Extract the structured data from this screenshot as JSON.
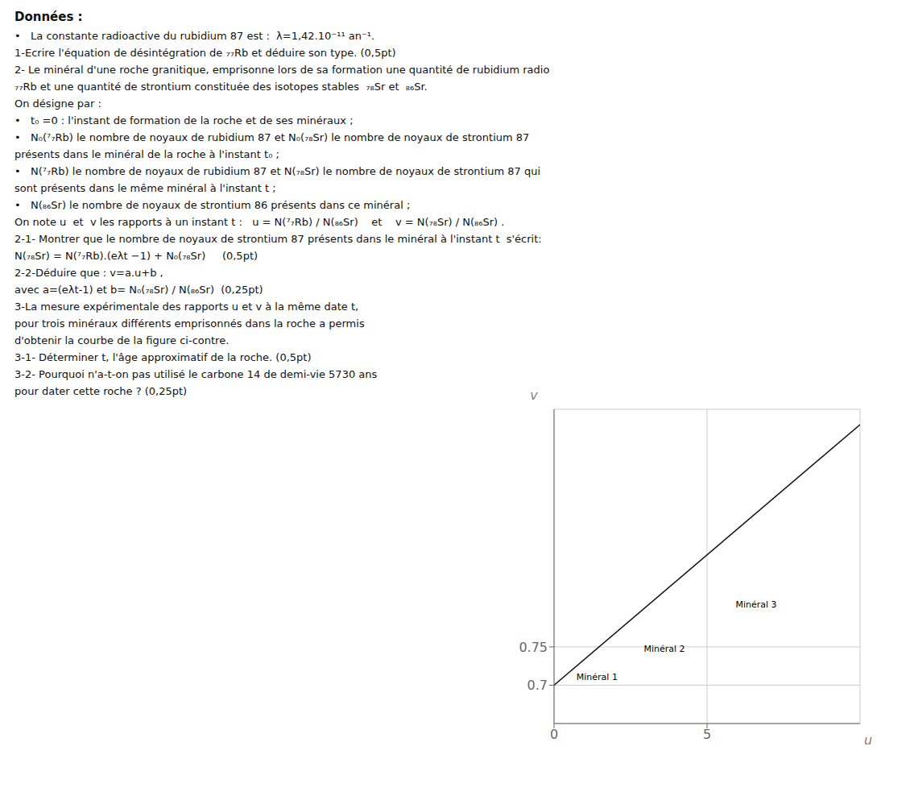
{
  "chart_data": {
    "type": "line",
    "title": "Données :",
    "subtitle": [
      "•   La constante radioactive du rubidium 87 est :  λ=1,42.10⁻¹¹ an⁻¹.",
      "1-Ecrire l'équation de désintégration de ₇₇Rb et déduire son type. (0,5pt)",
      "2- Le minéral d'une roche granitique, emprisonne lors de sa formation une quantité de rubidium radio",
      "₇₇Rb et une quantité de strontium constituée des isotopes stables  ₇₈Sr et  ₈₆Sr.",
      "On désigne par :",
      "•   t₀ =0 : l'instant de formation de la roche et de ses minéraux ;",
      "•   N₀(⁷₇Rb) le nombre de noyaux de rubidium 87 et N₀(₇₈Sr) le nombre de noyaux de strontium 87",
      "présents dans le minéral de la roche à l'instant t₀ ;",
      "•   N(⁷₇Rb) le nombre de noyaux de rubidium 87 et N(₇₈Sr) le nombre de noyaux de strontium 87 qui",
      "sont présents dans le même minéral à l'instant t ;",
      "•   N(₈₆Sr) le nombre de noyaux de strontium 86 présents dans ce minéral ;",
      "On note u  et  v les rapports à un instant t :   u = N(⁷₇Rb) / N(₈₆Sr)    et    v = N(₇₈Sr) / N(₈₆Sr) .",
      "2-1- Montrer que le nombre de noyaux de strontium 87 présents dans le minéral à l'instant t  s'écrit:",
      "N(₇₈Sr) = N(⁷₇Rb).(eλt −1) + N₀(₇₈Sr)     (0,5pt)",
      "2-2-Déduire que : v=a.u+b ,",
      "avec a=(eλt-1) et b= N₀(₇₈Sr) / N(₈₆Sr)  (0,25pt)",
      "3-La mesure expérimentale des rapports u et v à la même date t,",
      "pour trois minéraux différents emprisonnés dans la roche a permis",
      "d'obtenir la courbe de la figure ci-contre.",
      "3-1- Déterminer t, l'âge approximatif de la roche. (0,5pt)",
      "3-2- Pourquoi n'a-t-on pas utilisé le carbone 14 de demi-vie 5730 ans",
      "pour dater cette roche ? (0,25pt)"
    ],
    "x_label": "u",
    "y_label": "v",
    "x": [
      0,
      10
    ],
    "values": [
      0.7,
      1.04
    ],
    "color": "#111111",
    "xlim": [
      0,
      10
    ],
    "xticks": [
      0,
      5
    ],
    "ylim": [
      0.65,
      1.06
    ],
    "yticks": [
      0.7,
      0.75
    ],
    "grid": true,
    "annotations": [
      {
        "text": "Minéral 1",
        "x": 0.6,
        "y": 0.711
      },
      {
        "text": "Minéral 2",
        "x": 2.8,
        "y": 0.748
      },
      {
        "text": "Minéral 3",
        "x": 5.8,
        "y": 0.805
      }
    ]
  }
}
